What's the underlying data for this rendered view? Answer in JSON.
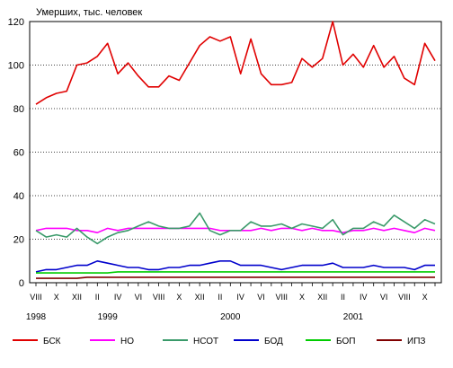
{
  "chart_data": {
    "type": "line",
    "title": "",
    "ylabel": "Умерших, тыс. человек",
    "xlabel": "",
    "ylim": [
      0,
      120
    ],
    "yticks": [
      0,
      20,
      40,
      60,
      80,
      100,
      120
    ],
    "grid": "horizontal",
    "legend_position": "bottom",
    "x_month_labels": [
      {
        "index": 0,
        "label": "VIII"
      },
      {
        "index": 2,
        "label": "X"
      },
      {
        "index": 4,
        "label": "XII"
      },
      {
        "index": 6,
        "label": "II"
      },
      {
        "index": 8,
        "label": "IV"
      },
      {
        "index": 10,
        "label": "VI"
      },
      {
        "index": 12,
        "label": "VIII"
      },
      {
        "index": 14,
        "label": "X"
      },
      {
        "index": 16,
        "label": "XII"
      },
      {
        "index": 18,
        "label": "II"
      },
      {
        "index": 20,
        "label": "IV"
      },
      {
        "index": 22,
        "label": "VI"
      },
      {
        "index": 24,
        "label": "VIII"
      },
      {
        "index": 26,
        "label": "X"
      },
      {
        "index": 28,
        "label": "XII"
      },
      {
        "index": 30,
        "label": "II"
      },
      {
        "index": 32,
        "label": "IV"
      },
      {
        "index": 34,
        "label": "VI"
      },
      {
        "index": 36,
        "label": "VIII"
      },
      {
        "index": 38,
        "label": "X"
      }
    ],
    "x_year_labels": [
      {
        "index": 0,
        "label": "1998"
      },
      {
        "index": 7,
        "label": "1999"
      },
      {
        "index": 19,
        "label": "2000"
      },
      {
        "index": 31,
        "label": "2001"
      }
    ],
    "series": [
      {
        "name": "БСК",
        "color": "#e00000",
        "values": [
          82,
          85,
          87,
          88,
          100,
          101,
          104,
          110,
          96,
          101,
          95,
          90,
          90,
          95,
          93,
          101,
          109,
          113,
          111,
          113,
          96,
          112,
          96,
          91,
          91,
          92,
          103,
          99,
          103,
          120,
          100,
          105,
          99,
          109,
          99,
          104,
          94,
          91,
          110,
          102
        ]
      },
      {
        "name": "НО",
        "color": "#ff00ff",
        "values": [
          24,
          25,
          25,
          25,
          24,
          24,
          23,
          25,
          24,
          25,
          25,
          25,
          25,
          25,
          25,
          25,
          25,
          25,
          24,
          24,
          24,
          24,
          25,
          24,
          25,
          25,
          24,
          25,
          24,
          24,
          23,
          24,
          24,
          25,
          24,
          25,
          24,
          23,
          25,
          24
        ]
      },
      {
        "name": "НСОТ",
        "color": "#3a9a6a",
        "values": [
          24,
          21,
          22,
          21,
          25,
          21,
          18,
          21,
          23,
          24,
          26,
          28,
          26,
          25,
          25,
          26,
          32,
          24,
          22,
          24,
          24,
          28,
          26,
          26,
          27,
          25,
          27,
          26,
          25,
          29,
          22,
          25,
          25,
          28,
          26,
          31,
          28,
          25,
          29,
          27
        ]
      },
      {
        "name": "БОД",
        "color": "#0000cc",
        "values": [
          5,
          6,
          6,
          7,
          8,
          8,
          10,
          9,
          8,
          7,
          7,
          6,
          6,
          7,
          7,
          8,
          8,
          9,
          10,
          10,
          8,
          8,
          8,
          7,
          6,
          7,
          8,
          8,
          8,
          9,
          7,
          7,
          7,
          8,
          7,
          7,
          7,
          6,
          8,
          8
        ]
      },
      {
        "name": "БОП",
        "color": "#00cc00",
        "values": [
          4.5,
          4.5,
          4.5,
          4.5,
          4.5,
          4.5,
          4.5,
          4.5,
          5,
          5,
          5,
          5,
          5,
          5,
          5,
          5,
          5,
          5,
          5,
          5,
          5,
          5,
          5,
          5,
          5,
          5,
          5,
          5,
          5,
          5,
          5,
          5,
          5,
          5,
          5,
          5,
          5,
          5,
          5,
          5
        ]
      },
      {
        "name": "ИПЗ",
        "color": "#800000",
        "values": [
          2,
          2,
          2,
          2,
          2,
          2.5,
          2.5,
          2.5,
          2.5,
          2.5,
          2.5,
          2.5,
          2.5,
          2.5,
          2.5,
          2.5,
          2.5,
          2.5,
          2.5,
          2.5,
          2.5,
          2.5,
          2.5,
          2.5,
          2.5,
          2.5,
          2.5,
          2.5,
          2.5,
          2.5,
          2.5,
          2.5,
          2.5,
          2.5,
          2.5,
          2.5,
          2.5,
          2.5,
          2.5,
          2.5
        ]
      }
    ]
  }
}
